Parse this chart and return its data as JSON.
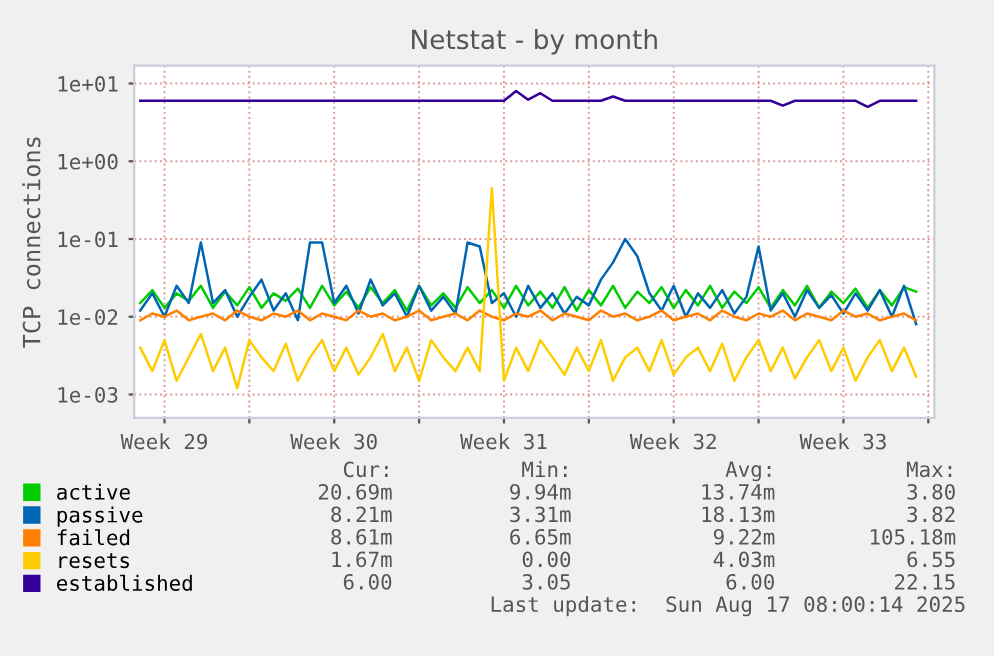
{
  "chart_data": {
    "type": "line",
    "title": "Netstat - by month",
    "ylabel": "TCP connections",
    "x": [
      "2025-07-16T12:00",
      "2025-07-17T00:00",
      "2025-07-17T12:00",
      "2025-07-18T00:00",
      "2025-07-18T12:00",
      "2025-07-19T00:00",
      "2025-07-19T12:00",
      "2025-07-20T00:00",
      "2025-07-20T12:00",
      "2025-07-21T00:00",
      "2025-07-21T12:00",
      "2025-07-22T00:00",
      "2025-07-22T12:00",
      "2025-07-23T00:00",
      "2025-07-23T12:00",
      "2025-07-24T00:00",
      "2025-07-24T12:00",
      "2025-07-25T00:00",
      "2025-07-25T12:00",
      "2025-07-26T00:00",
      "2025-07-26T12:00",
      "2025-07-27T00:00",
      "2025-07-27T12:00",
      "2025-07-28T00:00",
      "2025-07-28T12:00",
      "2025-07-29T00:00",
      "2025-07-29T12:00",
      "2025-07-30T00:00",
      "2025-07-30T12:00",
      "2025-07-31T00:00",
      "2025-07-31T12:00",
      "2025-08-01T00:00",
      "2025-08-01T12:00",
      "2025-08-02T00:00",
      "2025-08-02T12:00",
      "2025-08-03T00:00",
      "2025-08-03T12:00",
      "2025-08-04T00:00",
      "2025-08-04T12:00",
      "2025-08-05T00:00",
      "2025-08-05T12:00",
      "2025-08-06T00:00",
      "2025-08-06T12:00",
      "2025-08-07T00:00",
      "2025-08-07T12:00",
      "2025-08-08T00:00",
      "2025-08-08T12:00",
      "2025-08-09T00:00",
      "2025-08-09T12:00",
      "2025-08-10T00:00",
      "2025-08-10T12:00",
      "2025-08-11T00:00",
      "2025-08-11T12:00",
      "2025-08-12T00:00",
      "2025-08-12T12:00",
      "2025-08-13T00:00",
      "2025-08-13T12:00",
      "2025-08-14T00:00",
      "2025-08-14T12:00",
      "2025-08-15T00:00",
      "2025-08-15T12:00",
      "2025-08-16T00:00",
      "2025-08-16T12:00",
      "2025-08-17T00:00",
      "2025-08-17T12:00"
    ],
    "series": [
      {
        "name": "active",
        "color": "#00cc00",
        "values": [
          0.015,
          0.022,
          0.013,
          0.02,
          0.016,
          0.025,
          0.013,
          0.021,
          0.014,
          0.024,
          0.013,
          0.02,
          0.016,
          0.023,
          0.013,
          0.025,
          0.014,
          0.021,
          0.013,
          0.024,
          0.015,
          0.022,
          0.012,
          0.025,
          0.014,
          0.02,
          0.013,
          0.024,
          0.015,
          0.022,
          0.013,
          0.025,
          0.014,
          0.021,
          0.013,
          0.024,
          0.012,
          0.022,
          0.014,
          0.025,
          0.013,
          0.021,
          0.015,
          0.024,
          0.013,
          0.022,
          0.014,
          0.025,
          0.013,
          0.021,
          0.015,
          0.024,
          0.013,
          0.022,
          0.014,
          0.025,
          0.013,
          0.021,
          0.015,
          0.023,
          0.013,
          0.022,
          0.014,
          0.024,
          0.021
        ]
      },
      {
        "name": "passive",
        "color": "#0066b3",
        "values": [
          0.012,
          0.02,
          0.01,
          0.025,
          0.015,
          0.09,
          0.015,
          0.022,
          0.01,
          0.018,
          0.03,
          0.012,
          0.02,
          0.009,
          0.09,
          0.09,
          0.015,
          0.025,
          0.011,
          0.03,
          0.014,
          0.02,
          0.01,
          0.025,
          0.012,
          0.018,
          0.011,
          0.09,
          0.08,
          0.015,
          0.02,
          0.01,
          0.025,
          0.013,
          0.02,
          0.011,
          0.018,
          0.014,
          0.03,
          0.05,
          0.1,
          0.06,
          0.02,
          0.012,
          0.025,
          0.01,
          0.02,
          0.013,
          0.022,
          0.011,
          0.018,
          0.08,
          0.012,
          0.02,
          0.01,
          0.022,
          0.013,
          0.019,
          0.011,
          0.02,
          0.012,
          0.022,
          0.01,
          0.025,
          0.008
        ]
      },
      {
        "name": "failed",
        "color": "#ff8000",
        "values": [
          0.009,
          0.011,
          0.01,
          0.012,
          0.009,
          0.01,
          0.011,
          0.009,
          0.012,
          0.01,
          0.009,
          0.011,
          0.01,
          0.012,
          0.009,
          0.011,
          0.01,
          0.009,
          0.012,
          0.01,
          0.011,
          0.009,
          0.01,
          0.012,
          0.009,
          0.01,
          0.011,
          0.009,
          0.012,
          0.01,
          0.009,
          0.011,
          0.01,
          0.012,
          0.009,
          0.011,
          0.01,
          0.009,
          0.012,
          0.01,
          0.011,
          0.009,
          0.01,
          0.012,
          0.009,
          0.01,
          0.011,
          0.009,
          0.012,
          0.01,
          0.009,
          0.011,
          0.01,
          0.012,
          0.009,
          0.011,
          0.01,
          0.009,
          0.012,
          0.01,
          0.011,
          0.009,
          0.01,
          0.011,
          0.009
        ]
      },
      {
        "name": "resets",
        "color": "#ffcc00",
        "values": [
          0.004,
          0.002,
          0.005,
          0.0015,
          0.003,
          0.006,
          0.002,
          0.004,
          0.0012,
          0.005,
          0.003,
          0.002,
          0.0045,
          0.0015,
          0.003,
          0.005,
          0.002,
          0.004,
          0.0018,
          0.003,
          0.006,
          0.002,
          0.004,
          0.0015,
          0.005,
          0.003,
          0.002,
          0.004,
          0.002,
          0.45,
          0.0015,
          0.004,
          0.002,
          0.005,
          0.003,
          0.0018,
          0.004,
          0.002,
          0.005,
          0.0015,
          0.003,
          0.004,
          0.002,
          0.005,
          0.0018,
          0.003,
          0.004,
          0.002,
          0.0045,
          0.0015,
          0.003,
          0.005,
          0.002,
          0.004,
          0.0016,
          0.003,
          0.005,
          0.002,
          0.004,
          0.0015,
          0.003,
          0.005,
          0.002,
          0.004,
          0.0017
        ]
      },
      {
        "name": "established",
        "color": "#330099",
        "values": [
          6,
          6,
          6,
          6,
          6,
          6,
          6,
          6,
          6,
          6,
          6,
          6,
          6,
          6,
          6,
          6,
          6,
          6,
          6,
          6,
          6,
          6,
          6,
          6,
          6,
          6,
          6,
          6,
          6,
          6,
          6,
          8,
          6.2,
          7.5,
          6,
          6,
          6,
          6,
          6,
          6.8,
          6,
          6,
          6,
          6,
          6,
          6,
          6,
          6,
          6,
          6,
          6,
          6,
          6,
          5.2,
          6,
          6,
          6,
          6,
          6,
          6,
          5,
          6,
          6,
          6,
          6
        ]
      }
    ],
    "log": "y",
    "ylim": [
      0.0005,
      17
    ],
    "yticks": [
      {
        "value": 0.001,
        "label": "1e-03"
      },
      {
        "value": 0.01,
        "label": "1e-02"
      },
      {
        "value": 0.1,
        "label": "1e-01"
      },
      {
        "value": 1,
        "label": "1e+00"
      },
      {
        "value": 10,
        "label": "1e+01"
      }
    ],
    "xlim": [
      "2025-07-16T06:00",
      "2025-08-18T06:00"
    ],
    "xticks": [
      {
        "value": "2025-07-17T12:00",
        "label": "Week 29"
      },
      {
        "value": "2025-07-21T00:00",
        "label": null
      },
      {
        "value": "2025-07-24T12:00",
        "label": "Week 30"
      },
      {
        "value": "2025-07-28T00:00",
        "label": null
      },
      {
        "value": "2025-07-31T12:00",
        "label": "Week 31"
      },
      {
        "value": "2025-08-04T00:00",
        "label": null
      },
      {
        "value": "2025-08-07T12:00",
        "label": "Week 32"
      },
      {
        "value": "2025-08-11T00:00",
        "label": null
      },
      {
        "value": "2025-08-14T12:00",
        "label": "Week 33"
      },
      {
        "value": "2025-08-18T00:00",
        "label": null
      }
    ],
    "grid": true,
    "legend": "bottom",
    "line_style": "solid",
    "annotations": [
      "Cur:",
      "Min:",
      "Avg:",
      "Max:",
      "20.69m",
      "9.94m",
      "13.74m",
      "3.80",
      "8.21m",
      "3.31m",
      "18.13m",
      "3.82",
      "8.61m",
      "6.65m",
      "9.22m",
      "105.18m",
      "1.67m",
      "0.00",
      "4.03m",
      "6.55",
      "6.00",
      "3.05",
      "6.00",
      "22.15",
      "Last update:  Sun Aug 17 08:00:14 2025"
    ]
  }
}
